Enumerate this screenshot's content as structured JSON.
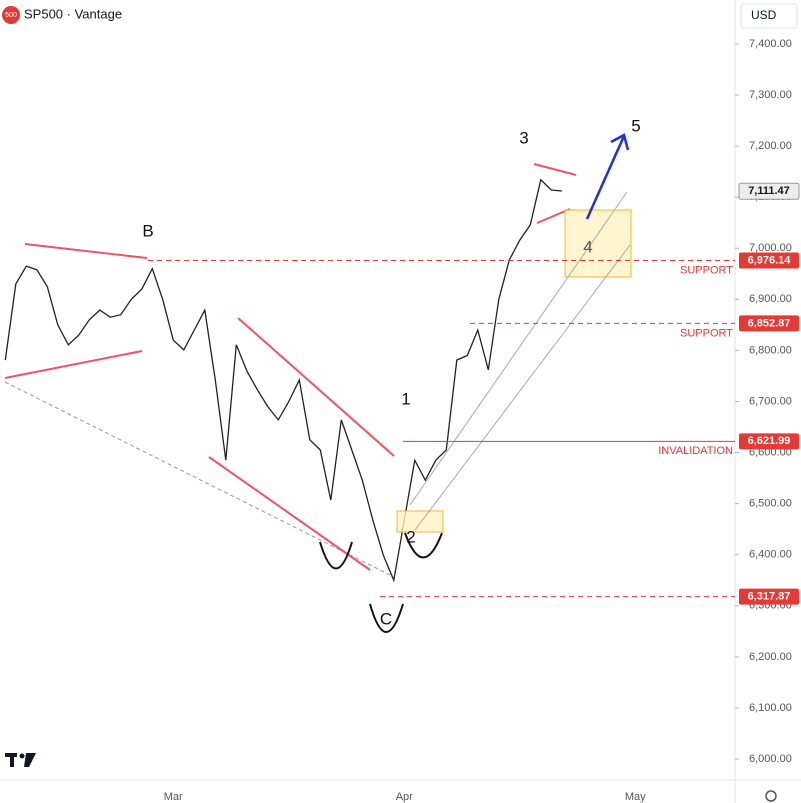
{
  "chart_data": {
    "type": "line",
    "title": "SP500 · Vantage",
    "logo": "500",
    "currency": "USD",
    "categories": [
      null,
      null,
      null,
      null,
      null,
      null,
      null,
      null,
      null,
      null,
      null,
      null,
      null,
      null,
      null,
      null,
      "Mar",
      null,
      null,
      null,
      null,
      null,
      null,
      null,
      null,
      null,
      null,
      null,
      null,
      null,
      null,
      null,
      null,
      null,
      null,
      null,
      null,
      null,
      "Apr",
      null,
      null,
      null,
      null,
      null,
      null,
      null,
      null,
      null,
      null,
      null,
      null,
      null,
      null,
      null,
      null,
      null,
      null,
      null,
      null,
      null,
      "May",
      null,
      null,
      null,
      null,
      null,
      null,
      null,
      null,
      null
    ],
    "series": [
      {
        "name": "SP500",
        "color": "#222222",
        "values": [
          6781,
          6930,
          6965,
          6958,
          6925,
          6850,
          6811,
          6830,
          6860,
          6879,
          6865,
          6870,
          6900,
          6920,
          6960,
          6899,
          6820,
          6801,
          6840,
          6879,
          6742,
          6585,
          6811,
          6760,
          6723,
          6690,
          6664,
          6700,
          6742,
          6625,
          6605,
          6507,
          6664,
          6605,
          6546,
          6468,
          6399,
          6350,
          6468,
          6585,
          6546,
          6585,
          6605,
          6781,
          6790,
          6840,
          6762,
          6900,
          6977,
          7016,
          7046,
          7134,
          7114,
          7112,
          null,
          null,
          null,
          null,
          null,
          null,
          null,
          null,
          null,
          null,
          null,
          null,
          null,
          null,
          null,
          null
        ]
      }
    ],
    "ylim": [
      5959,
      7486
    ],
    "yticks": [
      {
        "value": 6000,
        "label": "6,000.00"
      },
      {
        "value": 6100,
        "label": "6,100.00"
      },
      {
        "value": 6200,
        "label": "6,200.00"
      },
      {
        "value": 6300,
        "label": "6,300.00"
      },
      {
        "value": 6400,
        "label": "6,400.00"
      },
      {
        "value": 6500,
        "label": "6,500.00"
      },
      {
        "value": 6600,
        "label": "6,600.00"
      },
      {
        "value": 6700,
        "label": "6,700.00"
      },
      {
        "value": 6800,
        "label": "6,800.00"
      },
      {
        "value": 6900,
        "label": "6,900.00"
      },
      {
        "value": 7000,
        "label": "7,000.00"
      },
      {
        "value": 7100,
        "label": "7,100.00"
      },
      {
        "value": 7200,
        "label": "7,200.00"
      },
      {
        "value": 7300,
        "label": "7,300.00"
      },
      {
        "value": 7400,
        "label": "7,400.00"
      }
    ],
    "levels": {
      "values": [
        6976.14,
        6852.87,
        6621.99,
        6317.87
      ],
      "value_labels": [
        "6,976.14",
        "6,852.87",
        "6,621.99",
        "6,317.87"
      ],
      "texts": [
        "SUPPORT",
        "SUPPORT",
        "INVALIDATION",
        null
      ],
      "color": "#e53935"
    },
    "last_price": 7111.47,
    "last_price_label": "7,111.47",
    "annotations": [
      "B",
      "1",
      "2",
      "3",
      "4",
      "5",
      "C"
    ]
  }
}
